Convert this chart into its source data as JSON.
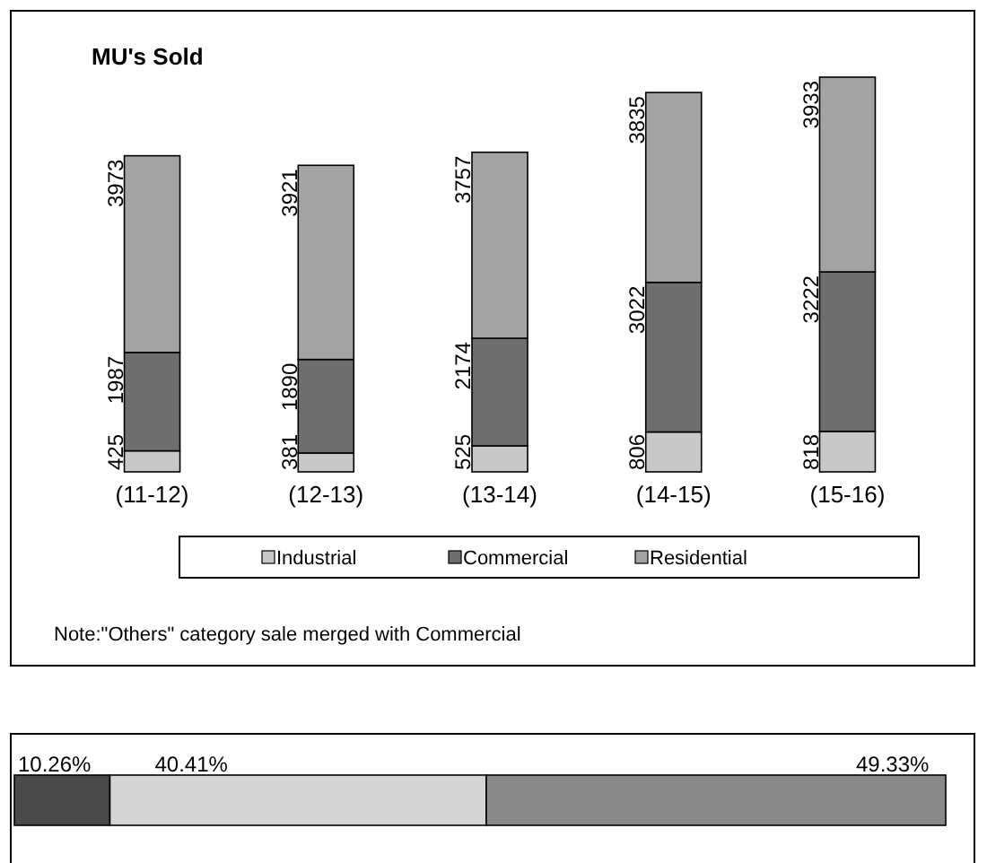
{
  "chart_data": [
    {
      "type": "bar",
      "title": "MU's Sold",
      "stacked": true,
      "data_labels": true,
      "legend": "bottom",
      "categories": [
        "(11-12)",
        "(12-13)",
        "(13-14)",
        "(14-15)",
        "(15-16)"
      ],
      "series": [
        {
          "name": "Industrial",
          "color": "#c8c8c8",
          "values": [
            425,
            381,
            525,
            806,
            818
          ]
        },
        {
          "name": "Commercial",
          "color": "#6e6e6e",
          "values": [
            1987,
            1890,
            2174,
            3022,
            3222
          ]
        },
        {
          "name": "Residential",
          "color": "#a3a3a3",
          "values": [
            3973,
            3921,
            3757,
            3835,
            3933
          ]
        }
      ],
      "annotations": [
        "Note:\"Others\" category sale merged with Commercial"
      ]
    },
    {
      "type": "bar",
      "stacked": true,
      "orientation": "horizontal",
      "categories": [
        null
      ],
      "series": [
        {
          "color": "#4a4a4a",
          "values": [
            10.26
          ],
          "value_labels": [
            "10.26%"
          ]
        },
        {
          "color": "#d4d4d4",
          "values": [
            40.41
          ],
          "value_labels": [
            "40.41%"
          ]
        },
        {
          "color": "#8a8a8a",
          "values": [
            49.33
          ],
          "value_labels": [
            "49.33%"
          ]
        }
      ]
    }
  ]
}
